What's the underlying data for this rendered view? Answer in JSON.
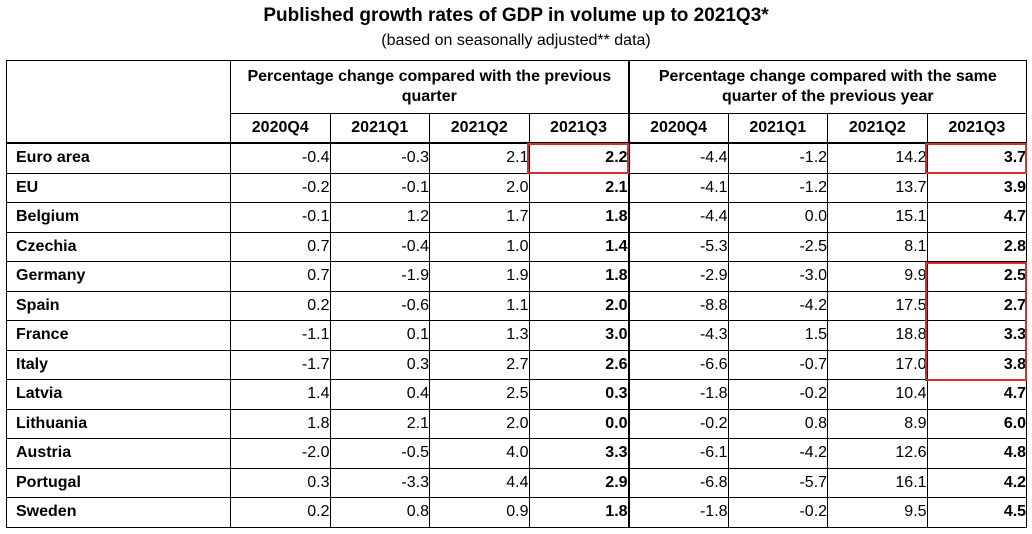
{
  "title": "Published growth rates of GDP in volume up to 2021Q3*",
  "subtitle": "(based on seasonally adjusted** data)",
  "chart_data": {
    "type": "table",
    "groups": [
      "Percentage change compared with the previous quarter",
      "Percentage change compared with the same quarter of the previous year"
    ],
    "quarters": [
      "2020Q4",
      "2021Q1",
      "2021Q2",
      "2021Q3"
    ],
    "rows": [
      {
        "country": "Euro area",
        "qoq": [
          "-0.4",
          "-0.3",
          "2.1",
          "2.2"
        ],
        "yoy": [
          "-4.4",
          "-1.2",
          "14.2",
          "3.7"
        ]
      },
      {
        "country": "EU",
        "qoq": [
          "-0.2",
          "-0.1",
          "2.0",
          "2.1"
        ],
        "yoy": [
          "-4.1",
          "-1.2",
          "13.7",
          "3.9"
        ]
      },
      {
        "country": "Belgium",
        "qoq": [
          "-0.1",
          "1.2",
          "1.7",
          "1.8"
        ],
        "yoy": [
          "-4.4",
          "0.0",
          "15.1",
          "4.7"
        ]
      },
      {
        "country": "Czechia",
        "qoq": [
          "0.7",
          "-0.4",
          "1.0",
          "1.4"
        ],
        "yoy": [
          "-5.3",
          "-2.5",
          "8.1",
          "2.8"
        ]
      },
      {
        "country": "Germany",
        "qoq": [
          "0.7",
          "-1.9",
          "1.9",
          "1.8"
        ],
        "yoy": [
          "-2.9",
          "-3.0",
          "9.9",
          "2.5"
        ]
      },
      {
        "country": "Spain",
        "qoq": [
          "0.2",
          "-0.6",
          "1.1",
          "2.0"
        ],
        "yoy": [
          "-8.8",
          "-4.2",
          "17.5",
          "2.7"
        ]
      },
      {
        "country": "France",
        "qoq": [
          "-1.1",
          "0.1",
          "1.3",
          "3.0"
        ],
        "yoy": [
          "-4.3",
          "1.5",
          "18.8",
          "3.3"
        ]
      },
      {
        "country": "Italy",
        "qoq": [
          "-1.7",
          "0.3",
          "2.7",
          "2.6"
        ],
        "yoy": [
          "-6.6",
          "-0.7",
          "17.0",
          "3.8"
        ]
      },
      {
        "country": "Latvia",
        "qoq": [
          "1.4",
          "0.4",
          "2.5",
          "0.3"
        ],
        "yoy": [
          "-1.8",
          "-0.2",
          "10.4",
          "4.7"
        ]
      },
      {
        "country": "Lithuania",
        "qoq": [
          "1.8",
          "2.1",
          "2.0",
          "0.0"
        ],
        "yoy": [
          "-0.2",
          "0.8",
          "8.9",
          "6.0"
        ]
      },
      {
        "country": "Austria",
        "qoq": [
          "-2.0",
          "-0.5",
          "4.0",
          "3.3"
        ],
        "yoy": [
          "-6.1",
          "-4.2",
          "12.6",
          "4.8"
        ]
      },
      {
        "country": "Portugal",
        "qoq": [
          "0.3",
          "-3.3",
          "4.4",
          "2.9"
        ],
        "yoy": [
          "-6.8",
          "-5.7",
          "16.1",
          "4.2"
        ]
      },
      {
        "country": "Sweden",
        "qoq": [
          "0.2",
          "0.8",
          "0.9",
          "1.8"
        ],
        "yoy": [
          "-1.8",
          "-0.2",
          "9.5",
          "4.5"
        ]
      }
    ],
    "highlight_color": "#d0312d"
  }
}
